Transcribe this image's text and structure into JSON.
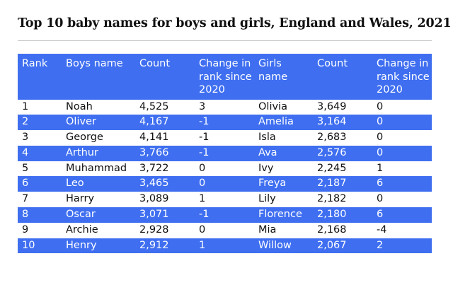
{
  "title": "Top 10 baby names for boys and girls, England and Wales, 2021",
  "colors": {
    "header_bg": "#3f6ff0",
    "stripe_bg": "#3f6ff0",
    "text": "#111111"
  },
  "table": {
    "headers": [
      "Rank",
      "Boys name",
      "Count",
      "Change in rank since 2020",
      "Girls name",
      "Count",
      "Change in rank since 2020"
    ],
    "rows": [
      [
        "1",
        "Noah",
        "4,525",
        "3",
        "Olivia",
        "3,649",
        "0"
      ],
      [
        "2",
        "Oliver",
        "4,167",
        "-1",
        "Amelia",
        "3,164",
        "0"
      ],
      [
        "3",
        "George",
        "4,141",
        "-1",
        "Isla",
        "2,683",
        "0"
      ],
      [
        "4",
        "Arthur",
        "3,766",
        "-1",
        "Ava",
        "2,576",
        "0"
      ],
      [
        "5",
        "Muhammad",
        "3,722",
        "0",
        "Ivy",
        "2,245",
        "1"
      ],
      [
        "6",
        "Leo",
        "3,465",
        "0",
        "Freya",
        "2,187",
        "6"
      ],
      [
        "7",
        "Harry",
        "3,089",
        "1",
        "Lily",
        "2,182",
        "0"
      ],
      [
        "8",
        "Oscar",
        "3,071",
        "-1",
        "Florence",
        "2,180",
        "6"
      ],
      [
        "9",
        "Archie",
        "2,928",
        "0",
        "Mia",
        "2,168",
        "-4"
      ],
      [
        "10",
        "Henry",
        "2,912",
        "1",
        "Willow",
        "2,067",
        "2"
      ]
    ]
  }
}
